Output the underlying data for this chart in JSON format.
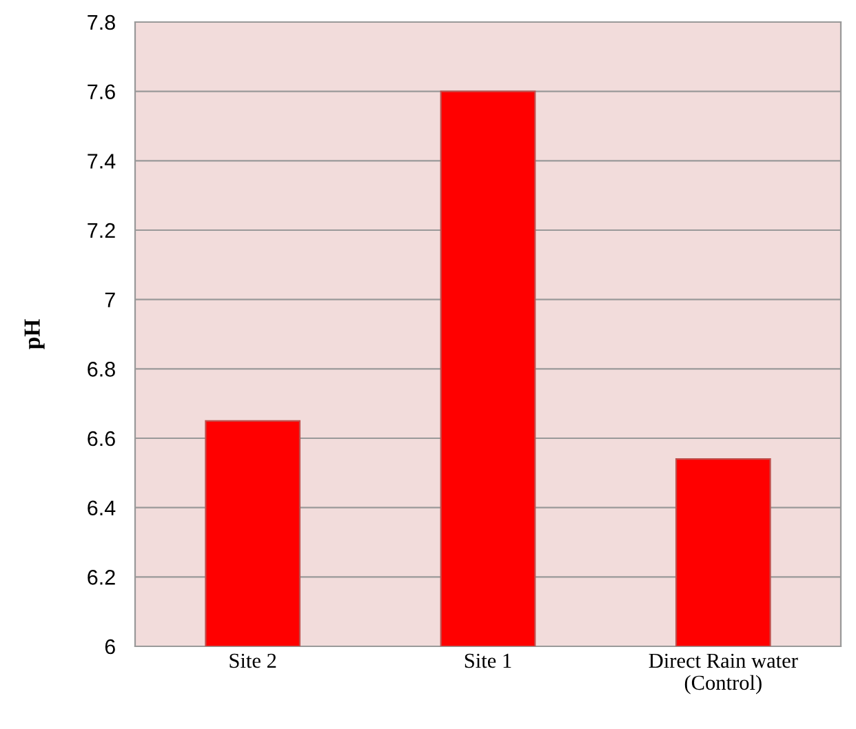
{
  "chart_data": {
    "type": "bar",
    "ylabel": "pH",
    "categories": [
      "Site 2",
      "Site 1",
      "Direct Rain water\n(Control)"
    ],
    "values": [
      6.65,
      7.6,
      6.54
    ],
    "color": "#ff0000",
    "ylim": [
      6,
      7.8
    ],
    "yticks": [
      6,
      6.2,
      6.4,
      6.6,
      6.8,
      7,
      7.2,
      7.4,
      7.6,
      7.8
    ],
    "grid": "y"
  }
}
